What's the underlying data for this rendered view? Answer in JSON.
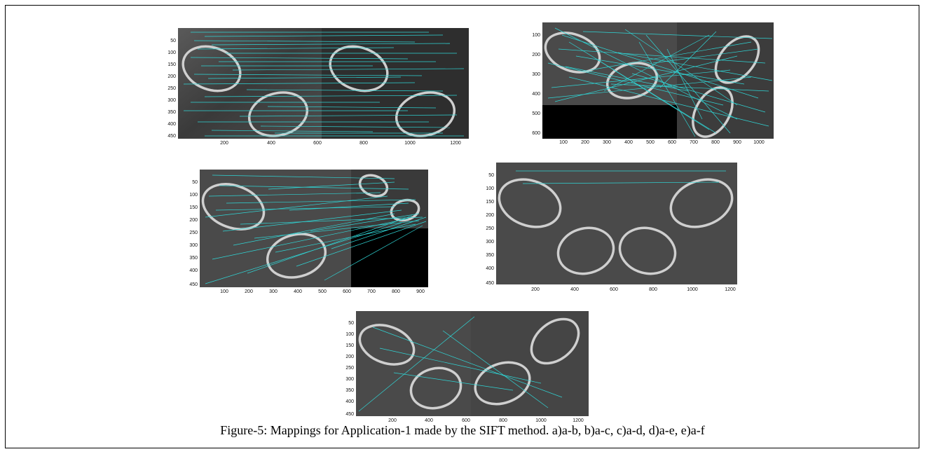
{
  "figure": {
    "caption": "Figure-5: Mappings for Application-1 made by the SIFT method. a)a-b, b)a-c, c)a-d, d)a-e, e)a-f"
  },
  "colors": {
    "match_line": "#2fd6d6",
    "image_bg": "#4a4a4a",
    "frame": "#000000"
  },
  "panels": [
    {
      "id": "a",
      "pair": "a-b",
      "y_ticks": [
        "50",
        "100",
        "150",
        "200",
        "250",
        "300",
        "350",
        "400",
        "450"
      ],
      "x_ticks": [
        "200",
        "400",
        "600",
        "800",
        "1000",
        "1200"
      ],
      "match_density": "dense"
    },
    {
      "id": "b",
      "pair": "a-c",
      "y_ticks": [
        "100",
        "200",
        "300",
        "400",
        "500",
        "600"
      ],
      "x_ticks": [
        "100",
        "200",
        "300",
        "400",
        "500",
        "600",
        "700",
        "800",
        "900",
        "1000"
      ],
      "match_density": "dense"
    },
    {
      "id": "c",
      "pair": "a-d",
      "y_ticks": [
        "50",
        "100",
        "150",
        "200",
        "250",
        "300",
        "350",
        "400",
        "450"
      ],
      "x_ticks": [
        "100",
        "200",
        "300",
        "400",
        "500",
        "600",
        "700",
        "800",
        "900"
      ],
      "match_density": "dense"
    },
    {
      "id": "d",
      "pair": "a-e",
      "y_ticks": [
        "50",
        "100",
        "150",
        "200",
        "250",
        "300",
        "350",
        "400",
        "450"
      ],
      "x_ticks": [
        "200",
        "400",
        "600",
        "800",
        "1000",
        "1200"
      ],
      "match_density": "sparse"
    },
    {
      "id": "e",
      "pair": "a-f",
      "y_ticks": [
        "50",
        "100",
        "150",
        "200",
        "250",
        "300",
        "350",
        "400",
        "450"
      ],
      "x_ticks": [
        "200",
        "400",
        "600",
        "800",
        "1000",
        "1200"
      ],
      "match_density": "sparse"
    }
  ]
}
